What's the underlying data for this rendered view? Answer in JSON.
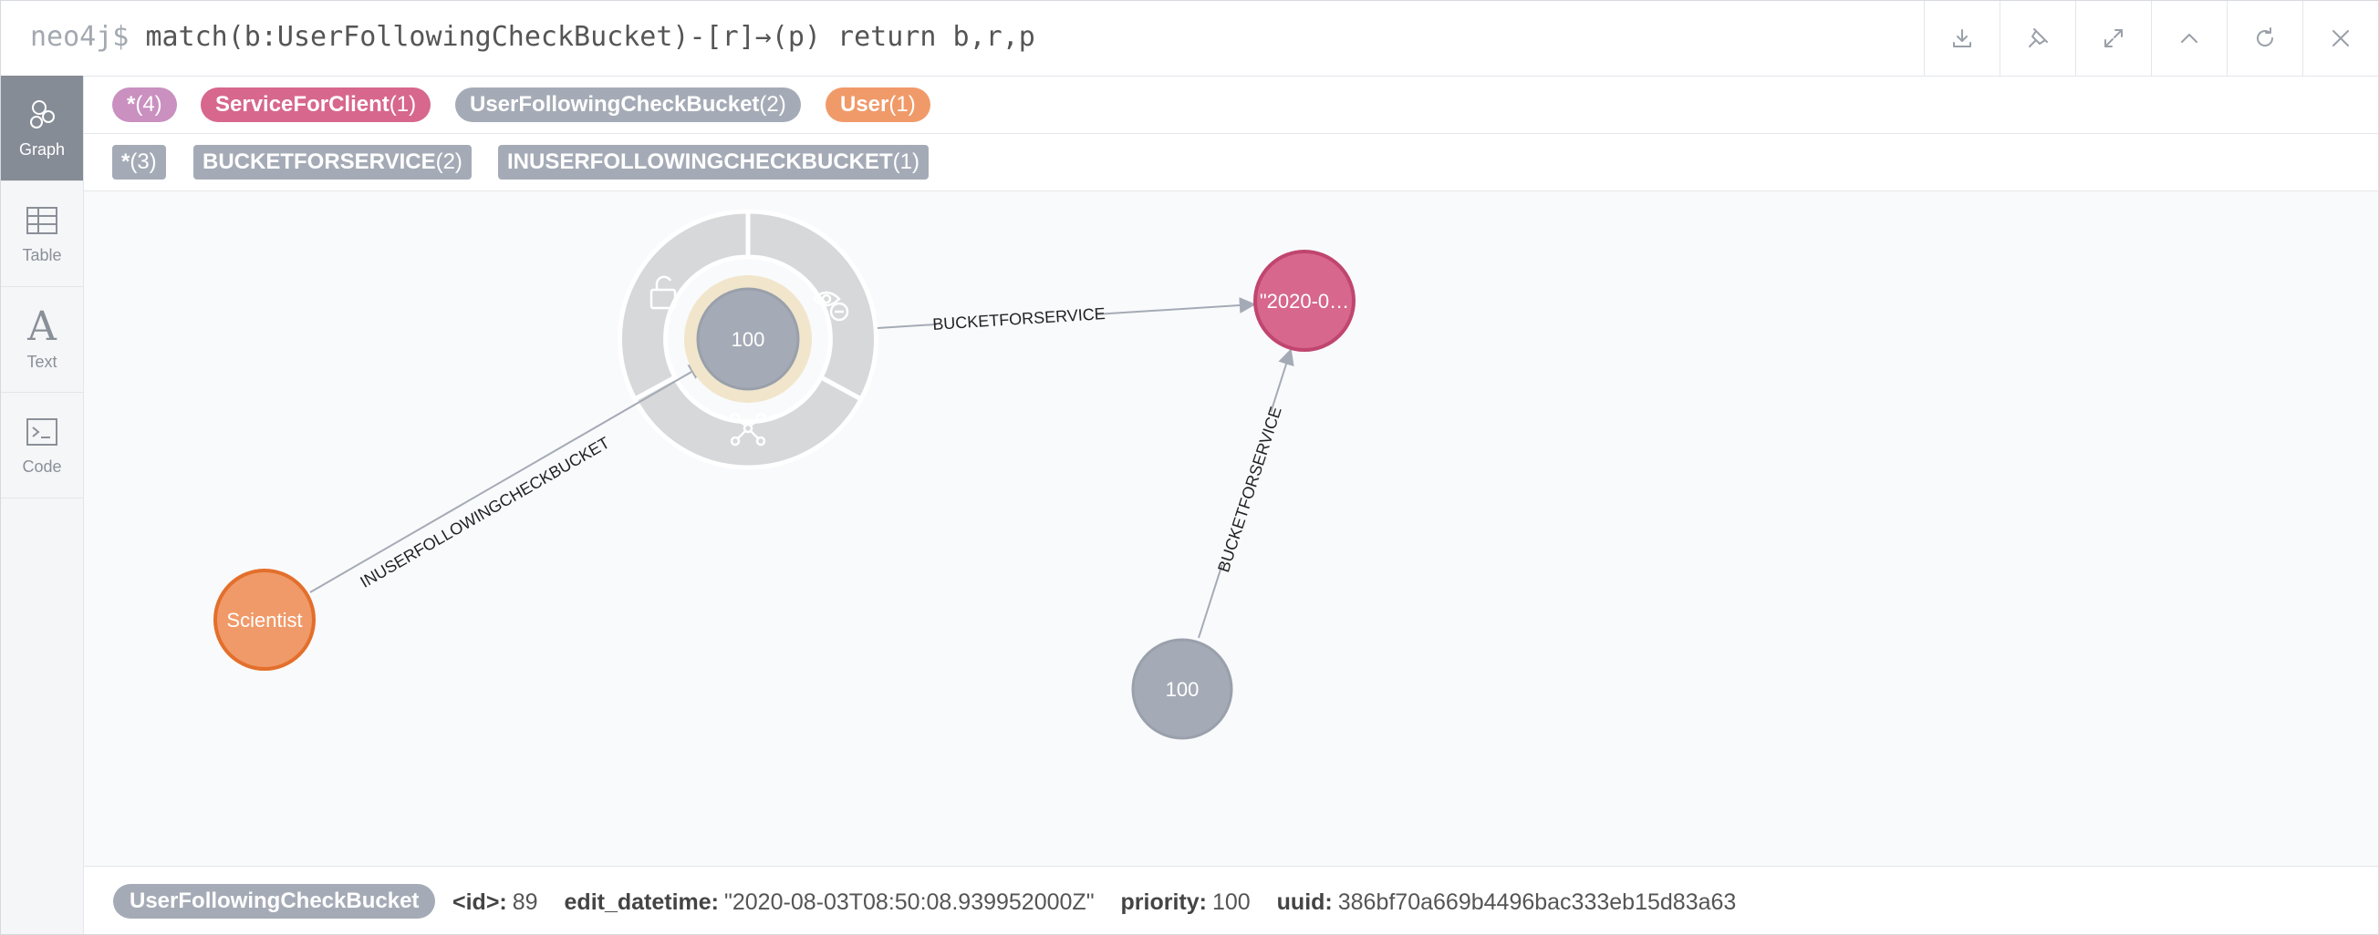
{
  "query": {
    "prompt": "neo4j$",
    "text": "match(b:UserFollowingCheckBucket)-[r]→(p) return b,r,p"
  },
  "header_actions": [
    "download-icon",
    "pin-icon",
    "expand-icon",
    "collapse-up-icon",
    "refresh-icon",
    "close-icon"
  ],
  "sidebar": {
    "items": [
      {
        "label": "Graph",
        "icon": "graph-icon",
        "active": true
      },
      {
        "label": "Table",
        "icon": "table-icon"
      },
      {
        "label": "Text",
        "icon": "text-icon"
      },
      {
        "label": "Code",
        "icon": "code-icon"
      }
    ]
  },
  "labels": [
    {
      "name": "*",
      "count": "(4)",
      "color": "#c990c0"
    },
    {
      "name": "ServiceForClient",
      "count": "(1)",
      "color": "#d7678c"
    },
    {
      "name": "UserFollowingCheckBucket",
      "count": "(2)",
      "color": "#a5abb6"
    },
    {
      "name": "User",
      "count": "(1)",
      "color": "#f09a69"
    }
  ],
  "relationship_types": [
    {
      "name": "*",
      "count": "(3)"
    },
    {
      "name": "BUCKETFORSERVICE",
      "count": "(2)"
    },
    {
      "name": "INUSERFOLLOWINGCHECKBUCKET",
      "count": "(1)"
    }
  ],
  "graph": {
    "nodes": [
      {
        "id": "selected",
        "caption": "100",
        "color": "#a5abb6",
        "stroke": "#9aa0ab"
      },
      {
        "id": "service",
        "caption": "\"2020-0…",
        "color": "#d7678c",
        "stroke": "#c0466f"
      },
      {
        "id": "user",
        "caption": "Scientist",
        "color": "#f09a69",
        "stroke": "#e36f2c"
      },
      {
        "id": "bucket2",
        "caption": "100",
        "color": "#a5abb6",
        "stroke": "#9aa0ab"
      }
    ],
    "relationships": [
      {
        "type": "BUCKETFORSERVICE",
        "from": "selected",
        "to": "service"
      },
      {
        "type": "INUSERFOLLOWINGCHECKBUCKET",
        "from": "user",
        "to": "selected"
      },
      {
        "type": "BUCKETFORSERVICE",
        "from": "bucket2",
        "to": "service"
      }
    ],
    "ring_actions": [
      "unlock-icon",
      "hide-eye-icon",
      "expand-network-icon"
    ]
  },
  "inspector": {
    "label": "UserFollowingCheckBucket",
    "properties": [
      {
        "key": "<id>:",
        "value": "89"
      },
      {
        "key": "edit_datetime:",
        "value": "\"2020-08-03T08:50:08.939952000Z\""
      },
      {
        "key": "priority:",
        "value": "100"
      },
      {
        "key": "uuid:",
        "value": "386bf70a669b4496bac333eb15d83a63"
      }
    ]
  }
}
